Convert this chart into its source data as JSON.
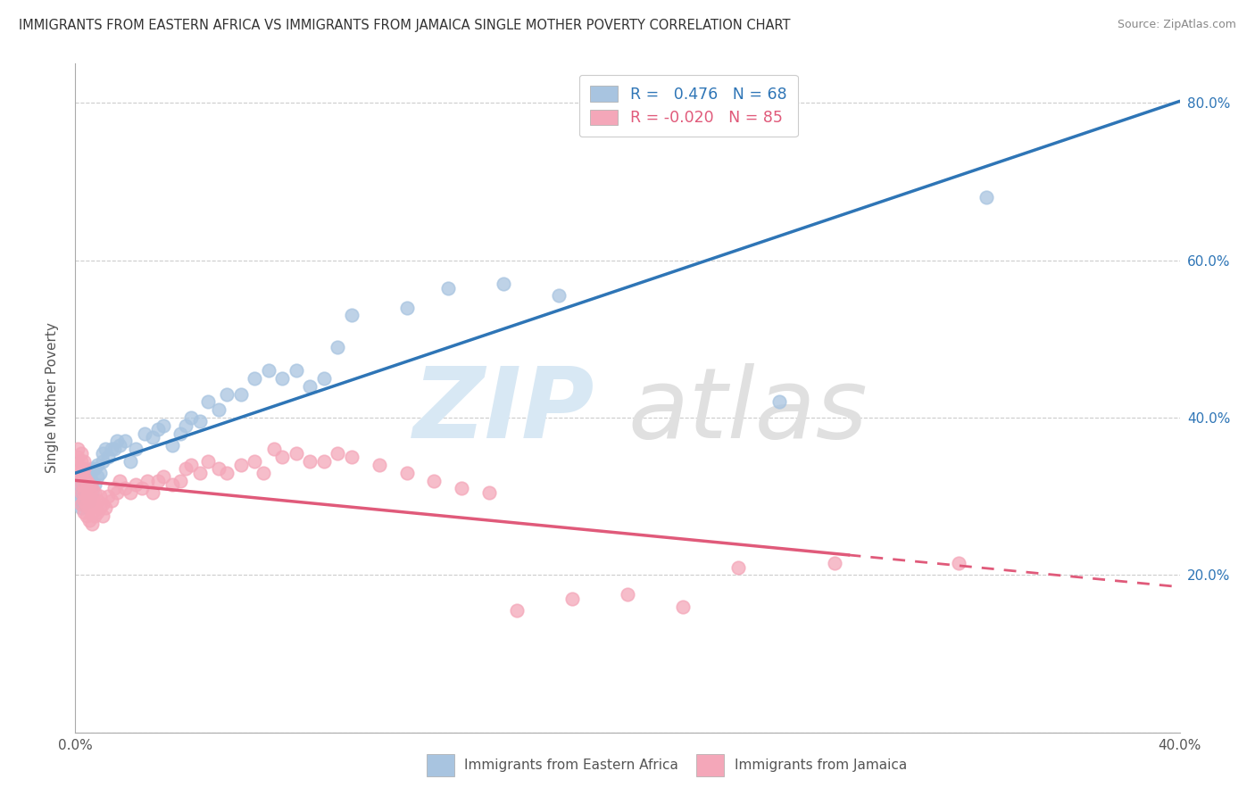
{
  "title": "IMMIGRANTS FROM EASTERN AFRICA VS IMMIGRANTS FROM JAMAICA SINGLE MOTHER POVERTY CORRELATION CHART",
  "source": "Source: ZipAtlas.com",
  "ylabel": "Single Mother Poverty",
  "xlim": [
    0.0,
    0.4
  ],
  "ylim": [
    0.0,
    0.85
  ],
  "r1": 0.476,
  "n1": 68,
  "r2": -0.02,
  "n2": 85,
  "color1": "#a8c4e0",
  "color2": "#f4a7b9",
  "line_color1": "#2e75b6",
  "line_color2": "#e05a7a",
  "background_color": "#ffffff",
  "grid_color": "#cccccc",
  "legend1_label": "Immigrants from Eastern Africa",
  "legend2_label": "Immigrants from Jamaica",
  "eastern_africa_x": [
    0.001,
    0.001,
    0.001,
    0.002,
    0.002,
    0.002,
    0.002,
    0.002,
    0.002,
    0.003,
    0.003,
    0.003,
    0.003,
    0.003,
    0.004,
    0.004,
    0.004,
    0.004,
    0.005,
    0.005,
    0.005,
    0.005,
    0.006,
    0.006,
    0.006,
    0.007,
    0.007,
    0.008,
    0.008,
    0.009,
    0.01,
    0.01,
    0.011,
    0.012,
    0.013,
    0.014,
    0.015,
    0.016,
    0.018,
    0.02,
    0.022,
    0.025,
    0.028,
    0.03,
    0.032,
    0.035,
    0.038,
    0.04,
    0.042,
    0.045,
    0.048,
    0.052,
    0.055,
    0.06,
    0.065,
    0.07,
    0.075,
    0.08,
    0.085,
    0.09,
    0.095,
    0.1,
    0.12,
    0.135,
    0.155,
    0.175,
    0.255,
    0.33
  ],
  "eastern_africa_y": [
    0.31,
    0.32,
    0.3,
    0.29,
    0.31,
    0.32,
    0.285,
    0.295,
    0.305,
    0.3,
    0.315,
    0.295,
    0.31,
    0.325,
    0.305,
    0.315,
    0.325,
    0.3,
    0.31,
    0.32,
    0.295,
    0.33,
    0.305,
    0.32,
    0.335,
    0.315,
    0.335,
    0.325,
    0.34,
    0.33,
    0.355,
    0.345,
    0.36,
    0.35,
    0.36,
    0.36,
    0.37,
    0.365,
    0.37,
    0.345,
    0.36,
    0.38,
    0.375,
    0.385,
    0.39,
    0.365,
    0.38,
    0.39,
    0.4,
    0.395,
    0.42,
    0.41,
    0.43,
    0.43,
    0.45,
    0.46,
    0.45,
    0.46,
    0.44,
    0.45,
    0.49,
    0.53,
    0.54,
    0.565,
    0.57,
    0.555,
    0.42,
    0.68
  ],
  "jamaica_x": [
    0.001,
    0.001,
    0.001,
    0.001,
    0.002,
    0.002,
    0.002,
    0.002,
    0.002,
    0.002,
    0.002,
    0.003,
    0.003,
    0.003,
    0.003,
    0.003,
    0.003,
    0.003,
    0.004,
    0.004,
    0.004,
    0.004,
    0.004,
    0.005,
    0.005,
    0.005,
    0.005,
    0.005,
    0.006,
    0.006,
    0.006,
    0.006,
    0.007,
    0.007,
    0.007,
    0.008,
    0.008,
    0.009,
    0.009,
    0.01,
    0.01,
    0.011,
    0.012,
    0.013,
    0.014,
    0.015,
    0.016,
    0.018,
    0.02,
    0.022,
    0.024,
    0.026,
    0.028,
    0.03,
    0.032,
    0.035,
    0.038,
    0.04,
    0.042,
    0.045,
    0.048,
    0.052,
    0.055,
    0.06,
    0.065,
    0.068,
    0.072,
    0.075,
    0.08,
    0.085,
    0.09,
    0.095,
    0.1,
    0.11,
    0.12,
    0.13,
    0.14,
    0.15,
    0.16,
    0.18,
    0.2,
    0.22,
    0.24,
    0.275,
    0.32
  ],
  "jamaica_y": [
    0.33,
    0.34,
    0.35,
    0.36,
    0.29,
    0.305,
    0.315,
    0.325,
    0.335,
    0.345,
    0.355,
    0.28,
    0.295,
    0.305,
    0.315,
    0.325,
    0.335,
    0.345,
    0.275,
    0.29,
    0.3,
    0.31,
    0.32,
    0.27,
    0.285,
    0.295,
    0.305,
    0.315,
    0.265,
    0.28,
    0.295,
    0.31,
    0.275,
    0.29,
    0.305,
    0.28,
    0.295,
    0.285,
    0.3,
    0.275,
    0.29,
    0.285,
    0.3,
    0.295,
    0.31,
    0.305,
    0.32,
    0.31,
    0.305,
    0.315,
    0.31,
    0.32,
    0.305,
    0.32,
    0.325,
    0.315,
    0.32,
    0.335,
    0.34,
    0.33,
    0.345,
    0.335,
    0.33,
    0.34,
    0.345,
    0.33,
    0.36,
    0.35,
    0.355,
    0.345,
    0.345,
    0.355,
    0.35,
    0.34,
    0.33,
    0.32,
    0.31,
    0.305,
    0.155,
    0.17,
    0.175,
    0.16,
    0.21,
    0.215,
    0.215
  ]
}
